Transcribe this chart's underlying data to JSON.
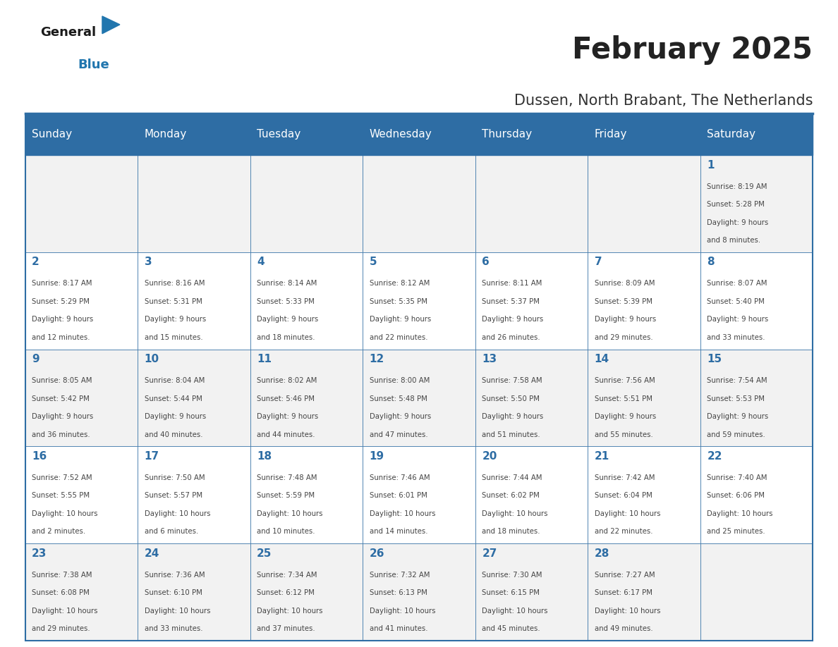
{
  "title": "February 2025",
  "subtitle": "Dussen, North Brabant, The Netherlands",
  "header_bg": "#2E6DA4",
  "header_text": "#FFFFFF",
  "cell_bg_light": "#F2F2F2",
  "cell_bg_white": "#FFFFFF",
  "border_color": "#2E6DA4",
  "title_color": "#222222",
  "subtitle_color": "#333333",
  "day_number_color": "#2E6DA4",
  "cell_text_color": "#444444",
  "days_of_week": [
    "Sunday",
    "Monday",
    "Tuesday",
    "Wednesday",
    "Thursday",
    "Friday",
    "Saturday"
  ],
  "weeks": [
    [
      {
        "day": "",
        "info": ""
      },
      {
        "day": "",
        "info": ""
      },
      {
        "day": "",
        "info": ""
      },
      {
        "day": "",
        "info": ""
      },
      {
        "day": "",
        "info": ""
      },
      {
        "day": "",
        "info": ""
      },
      {
        "day": "1",
        "info": "Sunrise: 8:19 AM\nSunset: 5:28 PM\nDaylight: 9 hours\nand 8 minutes."
      }
    ],
    [
      {
        "day": "2",
        "info": "Sunrise: 8:17 AM\nSunset: 5:29 PM\nDaylight: 9 hours\nand 12 minutes."
      },
      {
        "day": "3",
        "info": "Sunrise: 8:16 AM\nSunset: 5:31 PM\nDaylight: 9 hours\nand 15 minutes."
      },
      {
        "day": "4",
        "info": "Sunrise: 8:14 AM\nSunset: 5:33 PM\nDaylight: 9 hours\nand 18 minutes."
      },
      {
        "day": "5",
        "info": "Sunrise: 8:12 AM\nSunset: 5:35 PM\nDaylight: 9 hours\nand 22 minutes."
      },
      {
        "day": "6",
        "info": "Sunrise: 8:11 AM\nSunset: 5:37 PM\nDaylight: 9 hours\nand 26 minutes."
      },
      {
        "day": "7",
        "info": "Sunrise: 8:09 AM\nSunset: 5:39 PM\nDaylight: 9 hours\nand 29 minutes."
      },
      {
        "day": "8",
        "info": "Sunrise: 8:07 AM\nSunset: 5:40 PM\nDaylight: 9 hours\nand 33 minutes."
      }
    ],
    [
      {
        "day": "9",
        "info": "Sunrise: 8:05 AM\nSunset: 5:42 PM\nDaylight: 9 hours\nand 36 minutes."
      },
      {
        "day": "10",
        "info": "Sunrise: 8:04 AM\nSunset: 5:44 PM\nDaylight: 9 hours\nand 40 minutes."
      },
      {
        "day": "11",
        "info": "Sunrise: 8:02 AM\nSunset: 5:46 PM\nDaylight: 9 hours\nand 44 minutes."
      },
      {
        "day": "12",
        "info": "Sunrise: 8:00 AM\nSunset: 5:48 PM\nDaylight: 9 hours\nand 47 minutes."
      },
      {
        "day": "13",
        "info": "Sunrise: 7:58 AM\nSunset: 5:50 PM\nDaylight: 9 hours\nand 51 minutes."
      },
      {
        "day": "14",
        "info": "Sunrise: 7:56 AM\nSunset: 5:51 PM\nDaylight: 9 hours\nand 55 minutes."
      },
      {
        "day": "15",
        "info": "Sunrise: 7:54 AM\nSunset: 5:53 PM\nDaylight: 9 hours\nand 59 minutes."
      }
    ],
    [
      {
        "day": "16",
        "info": "Sunrise: 7:52 AM\nSunset: 5:55 PM\nDaylight: 10 hours\nand 2 minutes."
      },
      {
        "day": "17",
        "info": "Sunrise: 7:50 AM\nSunset: 5:57 PM\nDaylight: 10 hours\nand 6 minutes."
      },
      {
        "day": "18",
        "info": "Sunrise: 7:48 AM\nSunset: 5:59 PM\nDaylight: 10 hours\nand 10 minutes."
      },
      {
        "day": "19",
        "info": "Sunrise: 7:46 AM\nSunset: 6:01 PM\nDaylight: 10 hours\nand 14 minutes."
      },
      {
        "day": "20",
        "info": "Sunrise: 7:44 AM\nSunset: 6:02 PM\nDaylight: 10 hours\nand 18 minutes."
      },
      {
        "day": "21",
        "info": "Sunrise: 7:42 AM\nSunset: 6:04 PM\nDaylight: 10 hours\nand 22 minutes."
      },
      {
        "day": "22",
        "info": "Sunrise: 7:40 AM\nSunset: 6:06 PM\nDaylight: 10 hours\nand 25 minutes."
      }
    ],
    [
      {
        "day": "23",
        "info": "Sunrise: 7:38 AM\nSunset: 6:08 PM\nDaylight: 10 hours\nand 29 minutes."
      },
      {
        "day": "24",
        "info": "Sunrise: 7:36 AM\nSunset: 6:10 PM\nDaylight: 10 hours\nand 33 minutes."
      },
      {
        "day": "25",
        "info": "Sunrise: 7:34 AM\nSunset: 6:12 PM\nDaylight: 10 hours\nand 37 minutes."
      },
      {
        "day": "26",
        "info": "Sunrise: 7:32 AM\nSunset: 6:13 PM\nDaylight: 10 hours\nand 41 minutes."
      },
      {
        "day": "27",
        "info": "Sunrise: 7:30 AM\nSunset: 6:15 PM\nDaylight: 10 hours\nand 45 minutes."
      },
      {
        "day": "28",
        "info": "Sunrise: 7:27 AM\nSunset: 6:17 PM\nDaylight: 10 hours\nand 49 minutes."
      },
      {
        "day": "",
        "info": ""
      }
    ]
  ]
}
